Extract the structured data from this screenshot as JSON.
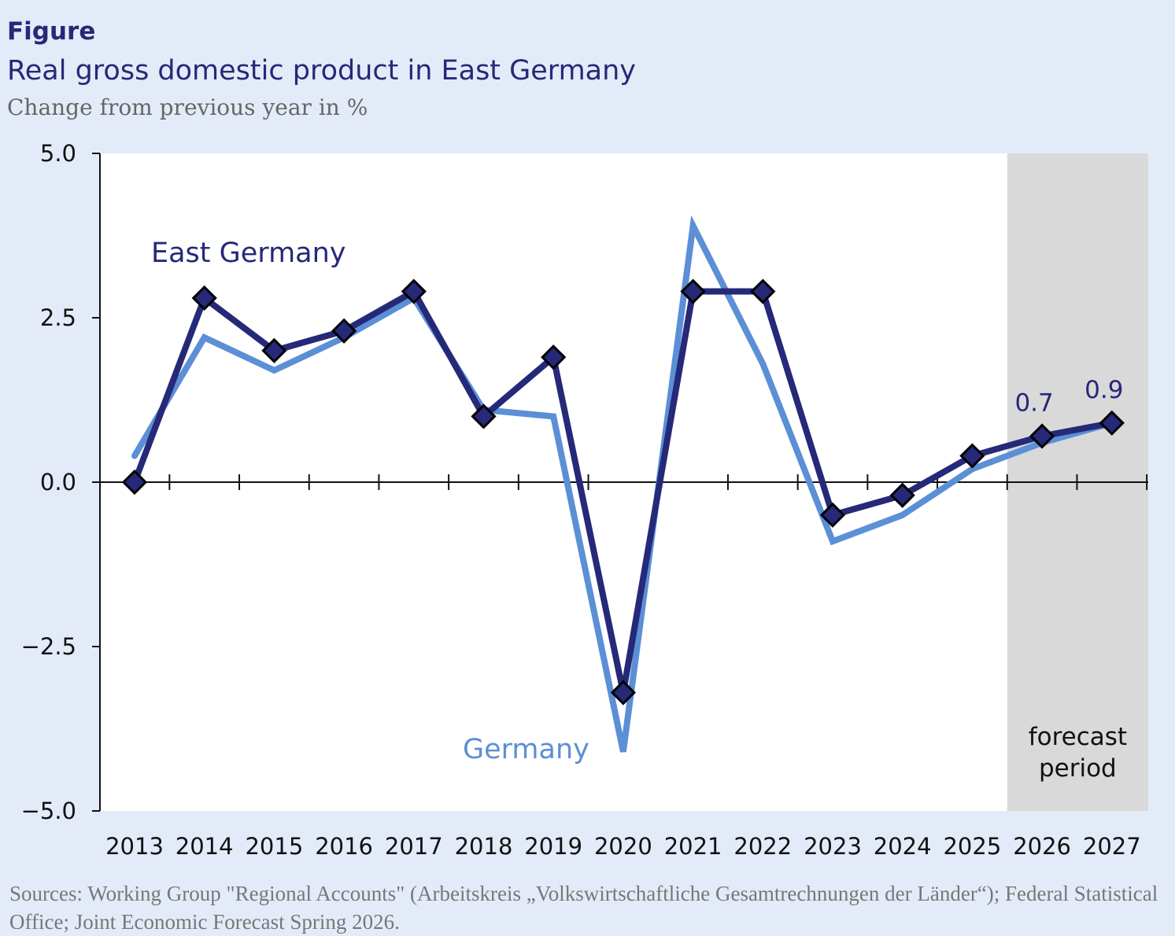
{
  "header": {
    "figure_label": "Figure",
    "title": "Real gross domestic product in East Germany",
    "subtitle": "Change from previous year in %"
  },
  "footer": {
    "source": "Sources: Working Group \"Regional Accounts\" (Arbeitskreis „Volkswirtschaftliche Gesamtrechnungen der Länder“); Federal Statistical Office; Joint Economic Forecast Spring 2026."
  },
  "chart_data": {
    "type": "line",
    "title": "Real gross domestic product in East Germany",
    "subtitle": "Change from previous year in %",
    "x": [
      "2013",
      "2014",
      "2015",
      "2016",
      "2017",
      "2018",
      "2019",
      "2020",
      "2021",
      "2022",
      "2023",
      "2024",
      "2025",
      "2026",
      "2027"
    ],
    "ylim": [
      -5.0,
      5.0
    ],
    "yticks": [
      "5.0",
      "2.5",
      "0.0",
      "−2.5",
      "−5.0"
    ],
    "ytick_values": [
      5.0,
      2.5,
      0.0,
      -2.5,
      -5.0
    ],
    "grid": false,
    "forecast_region": {
      "from": "2026",
      "to": "2027",
      "label_line1": "forecast",
      "label_line2": "period",
      "color": "#d9d9d9"
    },
    "series": [
      {
        "name": "Germany",
        "color": "#5b8fd6",
        "markers": false,
        "values": [
          0.4,
          2.2,
          1.7,
          2.2,
          2.8,
          1.1,
          1.0,
          -4.1,
          3.9,
          1.8,
          -0.9,
          -0.5,
          0.2,
          0.6,
          0.9
        ]
      },
      {
        "name": "East Germany",
        "color": "#262878",
        "markers": true,
        "values": [
          0.0,
          2.8,
          2.0,
          2.3,
          2.9,
          1.0,
          1.9,
          -3.2,
          2.9,
          2.9,
          -0.5,
          -0.2,
          0.4,
          0.7,
          0.9
        ]
      }
    ],
    "annotations": [
      {
        "x": "2026",
        "text": "0.7"
      },
      {
        "x": "2027",
        "text": "0.9"
      }
    ]
  }
}
